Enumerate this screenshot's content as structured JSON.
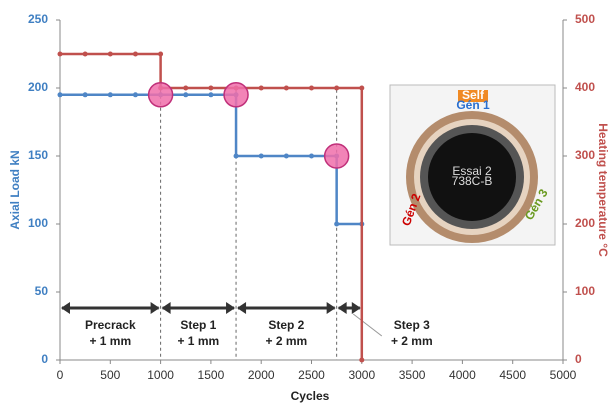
{
  "chart_data": {
    "type": "line",
    "xlabel": "Cycles",
    "ylabel": "Axial Load kN",
    "y2label": "Heating temperature °C",
    "xlim": [
      0,
      5000
    ],
    "xticks": [
      0,
      500,
      1000,
      1500,
      2000,
      2500,
      3000,
      3500,
      4000,
      4500,
      5000
    ],
    "ylim": [
      0,
      250
    ],
    "yticks": [
      0,
      50,
      100,
      150,
      200,
      250
    ],
    "y2lim": [
      0,
      500
    ],
    "y2ticks": [
      0,
      100,
      200,
      300,
      400,
      500
    ],
    "series": [
      {
        "name": "Axial Load",
        "color": "#4f86c6",
        "axis": "y",
        "x": [
          0,
          250,
          500,
          750,
          1000,
          1250,
          1500,
          1750,
          1750,
          2000,
          2250,
          2500,
          2750,
          2750,
          3000
        ],
        "values": [
          195,
          195,
          195,
          195,
          195,
          195,
          195,
          195,
          150,
          150,
          150,
          150,
          150,
          100,
          100
        ]
      },
      {
        "name": "Heating temperature",
        "color": "#c0504d",
        "axis": "y2",
        "x": [
          0,
          250,
          500,
          750,
          1000,
          1000,
          1250,
          1500,
          1750,
          2000,
          2250,
          2500,
          2750,
          3000,
          3000
        ],
        "values": [
          450,
          450,
          450,
          450,
          450,
          400,
          400,
          400,
          400,
          400,
          400,
          400,
          400,
          400,
          0
        ]
      }
    ],
    "highlights": {
      "color": "#f06eaa",
      "x": [
        1000,
        1750,
        2750
      ],
      "values": [
        195,
        195,
        150
      ]
    },
    "phases": [
      {
        "label": "Precrack",
        "sublabel": "+ 1 mm",
        "x": [
          0,
          1000
        ]
      },
      {
        "label": "Step 1",
        "sublabel": "+ 1 mm",
        "x": [
          1000,
          1750
        ]
      },
      {
        "label": "Step 2",
        "sublabel": "+ 2 mm",
        "x": [
          1750,
          2750
        ]
      },
      {
        "label": "Step 3",
        "sublabel": "+ 2 mm",
        "x": [
          2750,
          3000
        ]
      }
    ],
    "inset": {
      "tag": "Self",
      "labels": [
        "Gén 1",
        "Gén 2",
        "Gén 3"
      ],
      "center": [
        "Essai 2",
        "738C-B"
      ]
    }
  }
}
